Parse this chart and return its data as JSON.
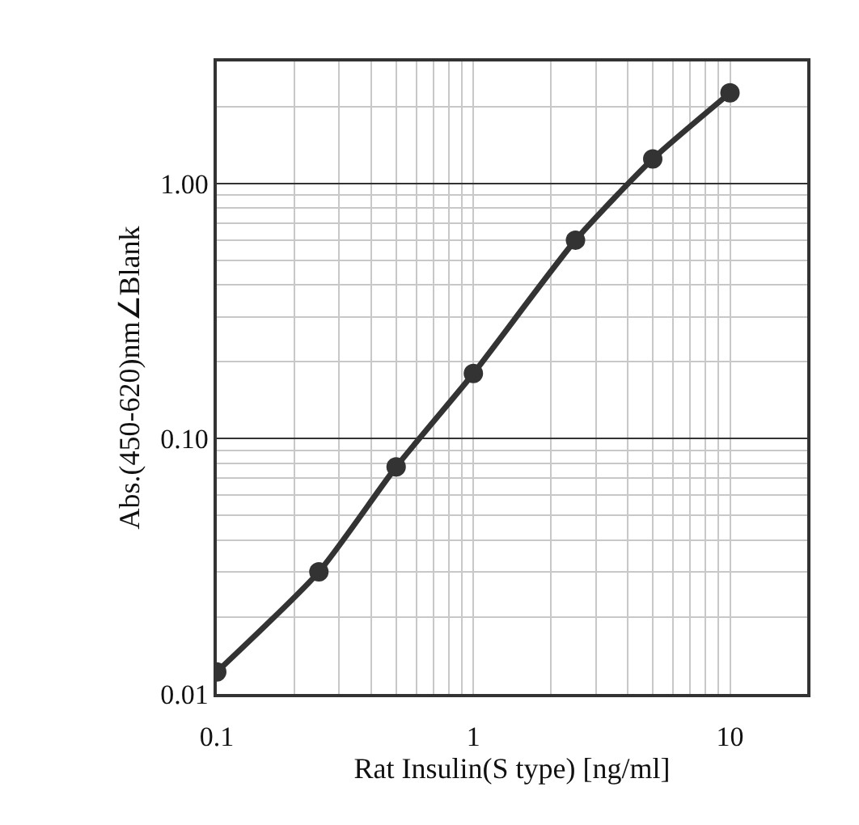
{
  "chart_data": {
    "type": "line",
    "xlabel": "Rat Insulin(S type) [ng/ml]",
    "ylabel": "Abs.(450-620)nm∠Blank",
    "x": [
      0.1,
      0.25,
      0.5,
      1,
      2.5,
      5,
      10
    ],
    "series": [
      {
        "color": "#333333",
        "values": [
          0.0122,
          0.0301,
          0.0775,
          0.18,
          0.599,
          1.245,
          2.26
        ]
      }
    ],
    "log": "xy",
    "xlim": [
      0.1,
      20
    ],
    "xticks": [
      {
        "value": 0.1,
        "label": "0.1"
      },
      1,
      10
    ],
    "ylim": [
      0.01,
      3
    ],
    "yticks": [
      {
        "value": 0.01,
        "label": "0.01"
      },
      {
        "value": 0.1,
        "label": "0.10"
      },
      {
        "value": 1,
        "label": "1.00"
      }
    ],
    "grid": true,
    "marker": "circle",
    "line_style": "solid"
  }
}
